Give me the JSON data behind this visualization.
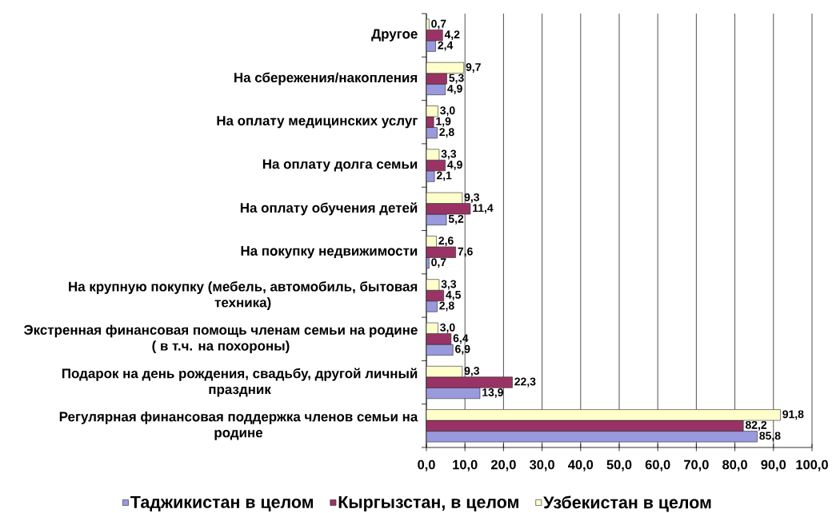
{
  "chart_data": {
    "type": "bar",
    "orientation": "horizontal",
    "categories": [
      "Другое",
      "На сбережения/накопления",
      "На оплату медицинских услуг",
      "На оплату долга семьи",
      "На оплату обучения детей",
      "На покупку недвижимости",
      "На крупную покупку (мебель, автомобиль, бытовая техника)",
      "Экстренная финансовая помощь членам семьи на родине ( в т.ч. на похороны)",
      "Подарок на день рождения, свадьбу, другой личный праздник",
      "Регулярная финансовая поддержка членов семьи на родине"
    ],
    "series": [
      {
        "name": "Таджикистан в целом",
        "color": "#9999dd",
        "values": [
          2.4,
          4.9,
          2.8,
          2.1,
          5.2,
          0.7,
          2.8,
          6.9,
          13.9,
          85.8
        ],
        "value_labels": [
          "2,4",
          "4,9",
          "2,8",
          "2,1",
          "5,2",
          "0,7",
          "2,8",
          "6,9",
          "13,9",
          "85,8"
        ]
      },
      {
        "name": "Кыргызстан, в целом",
        "color": "#993366",
        "values": [
          4.2,
          5.3,
          1.9,
          4.9,
          11.4,
          7.6,
          4.5,
          6.4,
          22.3,
          82.2
        ],
        "value_labels": [
          "4,2",
          "5,3",
          "1,9",
          "4,9",
          "11,4",
          "7,6",
          "4,5",
          "6,4",
          "22,3",
          "82,2"
        ]
      },
      {
        "name": "Узбекистан в целом",
        "color": "#ffffcc",
        "values": [
          0.7,
          9.7,
          3.0,
          3.3,
          9.3,
          2.6,
          3.3,
          3.0,
          9.3,
          91.8
        ],
        "value_labels": [
          "0,7",
          "9,7",
          "3,0",
          "3,3",
          "9,3",
          "2,6",
          "3,3",
          "3,0",
          "9,3",
          "91,8"
        ]
      }
    ],
    "xlim": [
      0,
      100
    ],
    "xticks": [
      {
        "value": 0,
        "label": "0,0"
      },
      {
        "value": 10,
        "label": "10,0"
      },
      {
        "value": 20,
        "label": "20,0"
      },
      {
        "value": 30,
        "label": "30,0"
      },
      {
        "value": 40,
        "label": "40,0"
      },
      {
        "value": 50,
        "label": "50,0"
      },
      {
        "value": 60,
        "label": "60,0"
      },
      {
        "value": 70,
        "label": "70,0"
      },
      {
        "value": 80,
        "label": "80,0"
      },
      {
        "value": 90,
        "label": "90,0"
      },
      {
        "value": 100,
        "label": "100,0"
      }
    ],
    "grid": "x",
    "legend": "bottom"
  }
}
